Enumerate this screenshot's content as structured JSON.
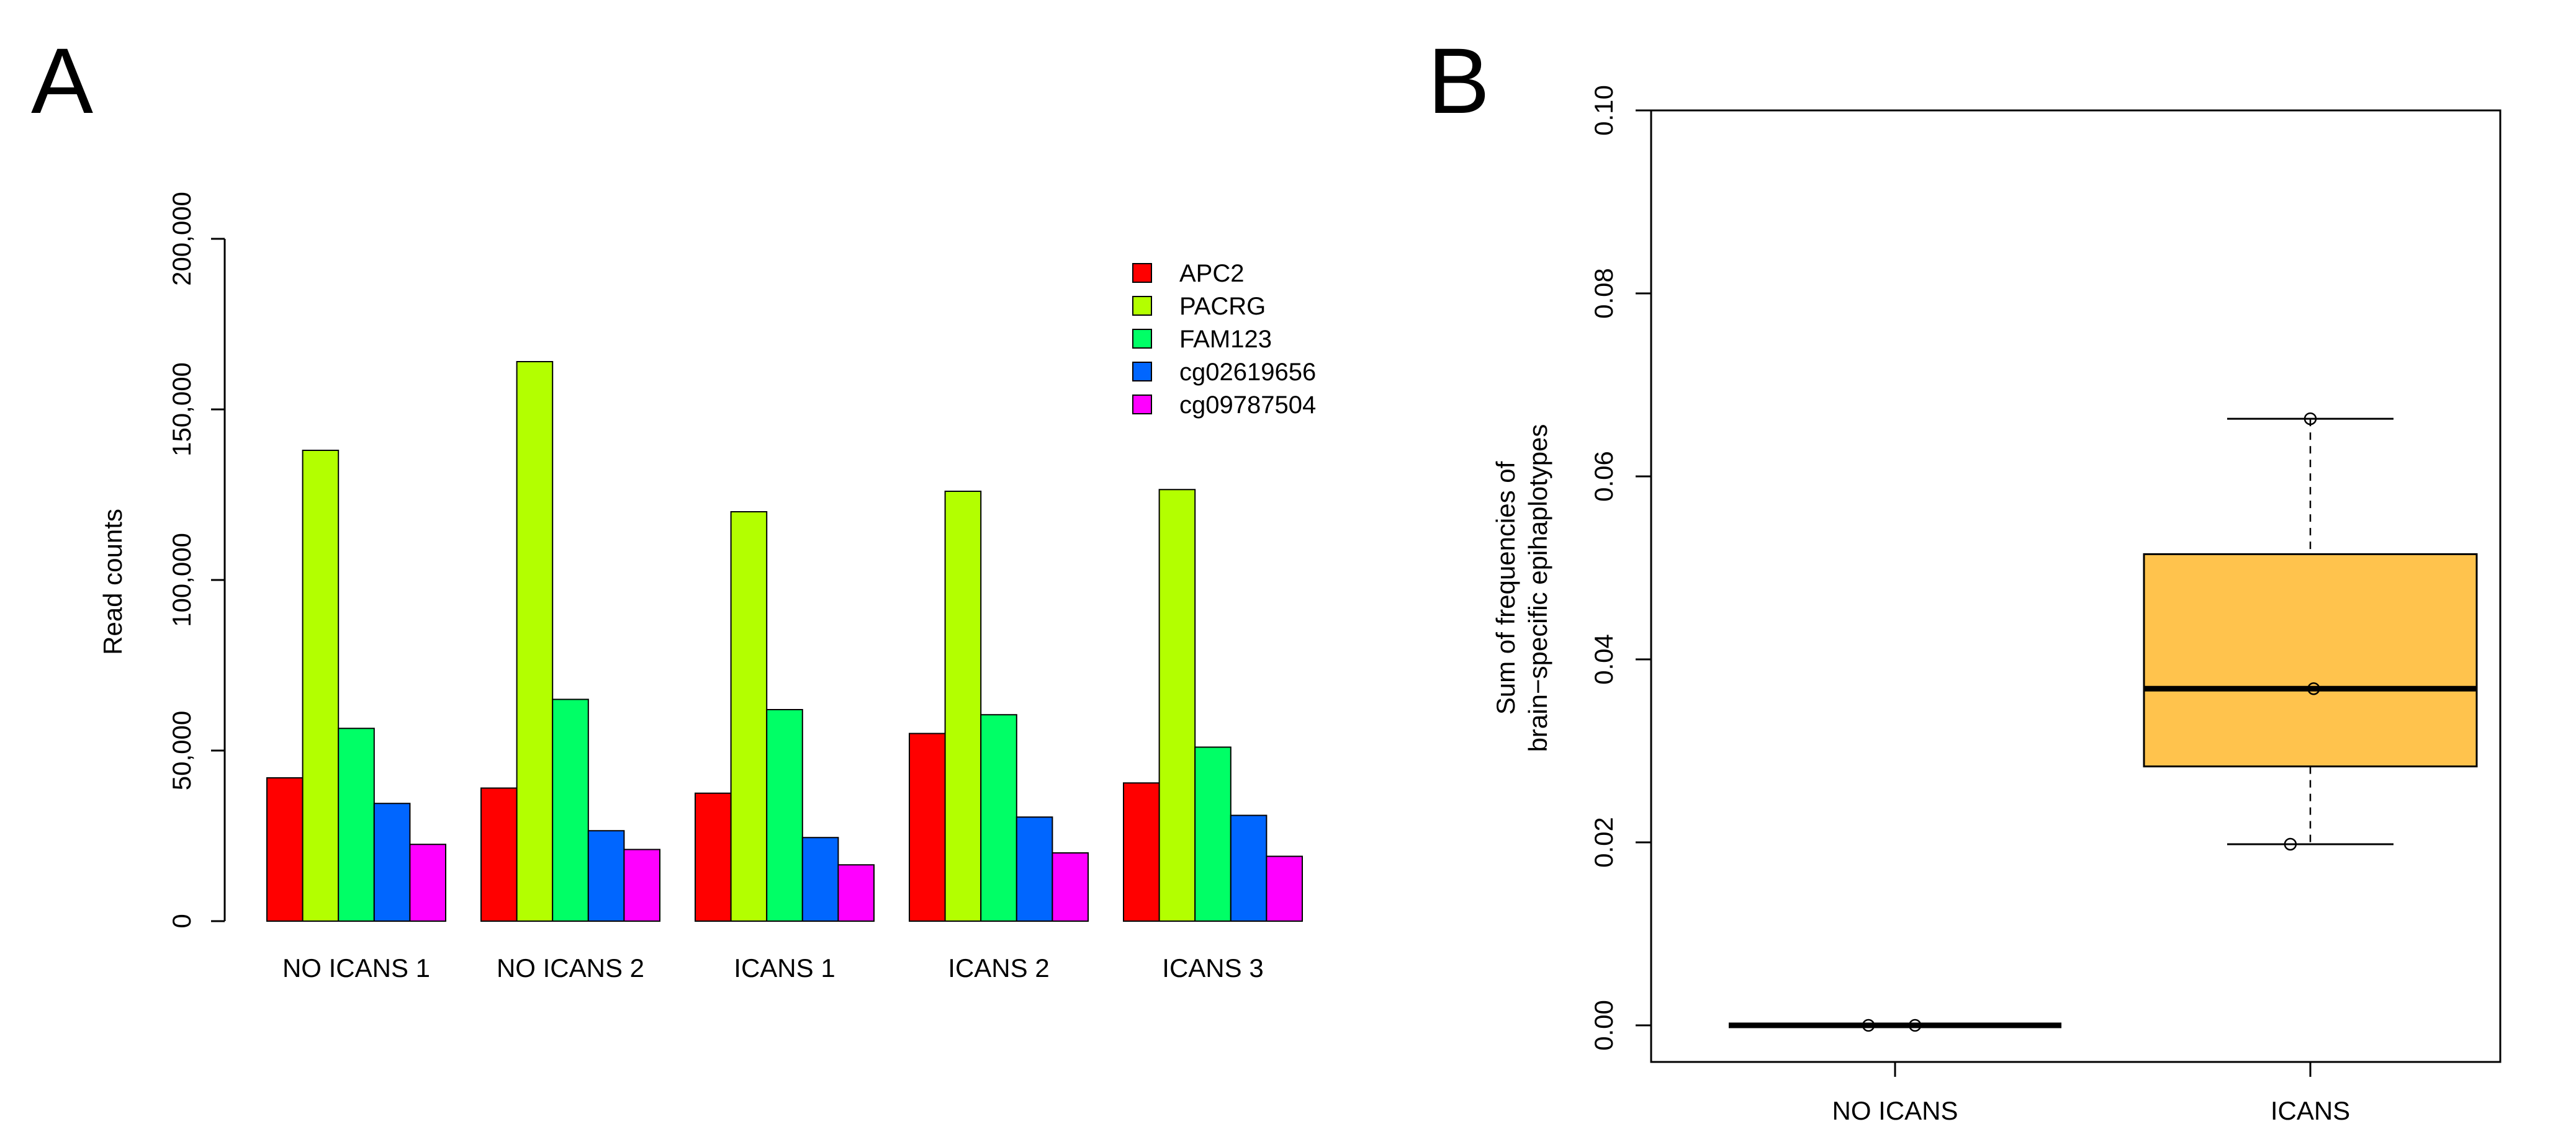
{
  "panels": {
    "a_label": "A",
    "b_label": "B"
  },
  "colors": {
    "APC2": "#ff0000",
    "PACRG": "#b3ff00",
    "FAM123": "#00ff66",
    "cg02619656": "#0066ff",
    "cg09787504": "#ff00ff",
    "box_fill": "#ffc34d"
  },
  "chart_data": [
    {
      "id": "A",
      "type": "bar",
      "ylabel": "Read counts",
      "xlabel": "",
      "ylim": [
        0,
        200000
      ],
      "yticks": [
        0,
        50000,
        100000,
        150000,
        200000
      ],
      "ytick_labels": [
        "0",
        "50,000",
        "100,000",
        "150,000",
        "200,000"
      ],
      "categories": [
        "NO ICANS 1",
        "NO ICANS 2",
        "ICANS 1",
        "ICANS 2",
        "ICANS 3"
      ],
      "legend_position": "top-right",
      "series": [
        {
          "name": "APC2",
          "values": [
            42000,
            39000,
            37500,
            55000,
            40500
          ]
        },
        {
          "name": "PACRG",
          "values": [
            138000,
            164000,
            120000,
            126000,
            126500
          ]
        },
        {
          "name": "FAM123",
          "values": [
            56500,
            65000,
            62000,
            60500,
            51000
          ]
        },
        {
          "name": "cg02619656",
          "values": [
            34500,
            26500,
            24500,
            30500,
            31000
          ]
        },
        {
          "name": "cg09787504",
          "values": [
            22500,
            21000,
            16500,
            20000,
            19000
          ]
        }
      ]
    },
    {
      "id": "B",
      "type": "box",
      "ylabel_lines": [
        "Sum of frequencies of",
        "brain−specific epihaplotypes"
      ],
      "ylim": [
        -0.004,
        0.1
      ],
      "yticks": [
        0.0,
        0.02,
        0.04,
        0.06,
        0.08,
        0.1
      ],
      "ytick_labels": [
        "0.00",
        "0.02",
        "0.04",
        "0.06",
        "0.08",
        "0.10"
      ],
      "groups": [
        {
          "name": "NO ICANS",
          "min": 0.0,
          "q1": 0.0,
          "median": 0.0,
          "q3": 0.0,
          "max": 0.0,
          "points": [
            0.0,
            0.0
          ],
          "point_offsets": [
            -0.08,
            0.06
          ]
        },
        {
          "name": "ICANS",
          "min": 0.0198,
          "q1": 0.0283,
          "median": 0.0368,
          "q3": 0.0515,
          "max": 0.0663,
          "points": [
            0.0663,
            0.0368,
            0.0198
          ],
          "point_offsets": [
            0.0,
            0.01,
            -0.06
          ]
        }
      ]
    }
  ]
}
